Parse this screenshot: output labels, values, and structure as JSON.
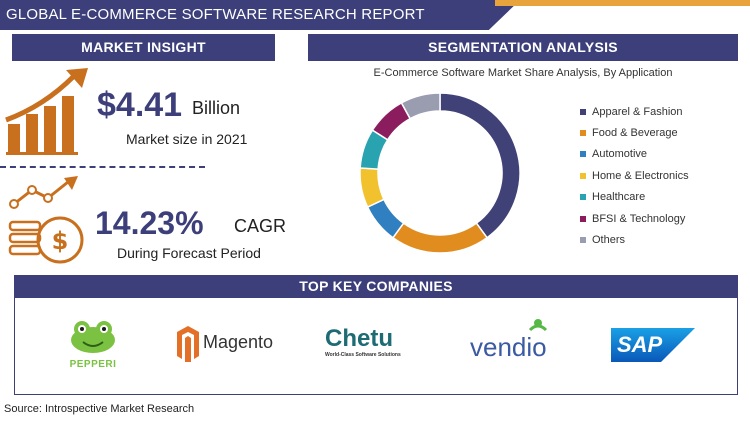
{
  "banner": {
    "title": "GLOBAL E-COMMERCE SOFTWARE RESEARCH REPORT"
  },
  "market_insight": {
    "header": "MARKET INSIGHT",
    "market_value": "$4.41",
    "market_unit": "Billion",
    "market_caption": "Market size in 2021",
    "cagr_value": "14.23%",
    "cagr_unit": "CAGR",
    "cagr_caption": "During Forecast Period",
    "icons": [
      "growth-bar-chart-icon",
      "coins-dollar-growth-icon"
    ],
    "accent_color": "#c8701e"
  },
  "segmentation": {
    "header": "SEGMENTATION ANALYSIS"
  },
  "chart_data": {
    "type": "pie",
    "donut": true,
    "title": "E-Commerce Software Market Share Analysis, By Application",
    "legend_position": "right",
    "categories": [
      "Apparel & Fashion",
      "Food & Beverage",
      "Automotive",
      "Home & Electronics",
      "Healthcare",
      "BFSI & Technology",
      "Others"
    ],
    "values": [
      40,
      20,
      8,
      8,
      8,
      8,
      8
    ],
    "colors": [
      "#404277",
      "#e08c1e",
      "#2f7fc1",
      "#f2c12e",
      "#2aa3b0",
      "#8b1d5e",
      "#9a9cb0"
    ]
  },
  "companies": {
    "header": "TOP KEY COMPANIES",
    "logos": [
      {
        "name": "pepperi-logo",
        "text": "PEPPERI"
      },
      {
        "name": "magento-logo",
        "text": "Magento"
      },
      {
        "name": "chetu-logo",
        "text": "Chetu",
        "tagline": "World-Class Software Solutions"
      },
      {
        "name": "vendio-logo",
        "text": "vendio"
      },
      {
        "name": "sap-logo",
        "text": "SAP"
      }
    ]
  },
  "footer": {
    "source": "Source: Introspective Market Research"
  }
}
